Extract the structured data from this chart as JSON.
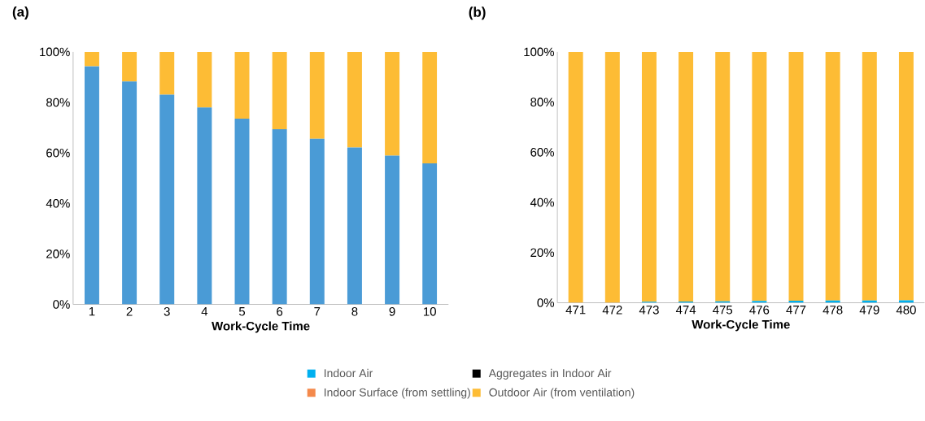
{
  "chart_data": [
    {
      "type": "bar",
      "title": "(a)",
      "xlabel": "Work-Cycle Time",
      "stacked": true,
      "categories": [
        "1",
        "2",
        "3",
        "4",
        "5",
        "6",
        "7",
        "8",
        "9",
        "10"
      ],
      "ylim": [
        0,
        100
      ],
      "yticks": [
        {
          "value": 0,
          "label": "0%"
        },
        {
          "value": 20,
          "label": "20%"
        },
        {
          "value": 40,
          "label": "40%"
        },
        {
          "value": 60,
          "label": "60%"
        },
        {
          "value": 80,
          "label": "80%"
        },
        {
          "value": 100,
          "label": "100%"
        }
      ],
      "grid": false,
      "series": [
        {
          "color": "#4a9bd6",
          "values": [
            94.3,
            88.3,
            83.1,
            78.0,
            73.6,
            69.4,
            65.6,
            62.1,
            58.9,
            55.9
          ]
        },
        {
          "color": "#fdbc35",
          "values": [
            5.7,
            11.7,
            16.9,
            22.0,
            26.4,
            30.6,
            34.4,
            37.9,
            41.1,
            44.1
          ]
        }
      ]
    },
    {
      "type": "bar",
      "title": "(b)",
      "xlabel": "Work-Cycle Time",
      "stacked": true,
      "categories": [
        "471",
        "472",
        "473",
        "474",
        "475",
        "476",
        "477",
        "478",
        "479",
        "480"
      ],
      "ylim": [
        0,
        100
      ],
      "yticks": [
        {
          "value": 0,
          "label": "0%"
        },
        {
          "value": 20,
          "label": "20%"
        },
        {
          "value": 40,
          "label": "40%"
        },
        {
          "value": 60,
          "label": "60%"
        },
        {
          "value": 80,
          "label": "80%"
        },
        {
          "value": 100,
          "label": "100%"
        }
      ],
      "grid": false,
      "legend": "bottom",
      "series": [
        {
          "name": "Indoor Air",
          "color": "#00b0f0",
          "values": [
            null,
            null,
            0.4,
            0.5,
            0.6,
            0.7,
            0.8,
            0.9,
            0.9,
            1.0
          ]
        },
        {
          "name": "Aggregates in Indoor Air",
          "color": "#000000",
          "values": [
            0,
            0,
            0,
            0,
            0,
            0,
            0,
            0,
            0,
            0
          ]
        },
        {
          "name": "Indoor Surface (from settling)",
          "color": "#f4894b",
          "values": [
            0,
            0,
            0,
            0,
            0,
            0,
            0,
            0,
            0,
            0
          ]
        },
        {
          "name": "Outdoor Air (from ventilation)",
          "color": "#fdbc35",
          "values": [
            100,
            100,
            99.6,
            99.5,
            99.4,
            99.3,
            99.2,
            99.1,
            99.1,
            99.0
          ]
        }
      ]
    }
  ]
}
